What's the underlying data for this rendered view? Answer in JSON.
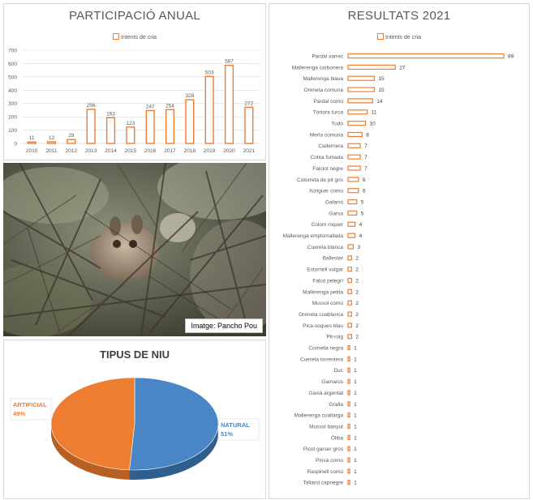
{
  "annual": {
    "title": "PARTICIPACIÓ ANUAL",
    "legend": "Intents de cria"
  },
  "results": {
    "title": "RESULTATS 2021",
    "legend": "Intents de cria"
  },
  "photo": {
    "credit": "Imatge: Pancho Pou"
  },
  "nest": {
    "title": "TIPUS DE NIU"
  },
  "colors": {
    "orange": "#ed7d31",
    "blue": "#4a86c5",
    "gridline": "#d9d9d9",
    "text": "#595959"
  },
  "chart_data": [
    {
      "type": "bar",
      "title": "PARTICIPACIÓ ANUAL",
      "categories": [
        "2010",
        "2011",
        "2012",
        "2013",
        "2014",
        "2015",
        "2016",
        "2017",
        "2018",
        "2019",
        "2020",
        "2021"
      ],
      "series": [
        {
          "name": "Intents de cria",
          "values": [
            11,
            12,
            29,
            256,
            193,
            123,
            247,
            254,
            328,
            503,
            587,
            272
          ]
        }
      ],
      "yticks": [
        0,
        100,
        200,
        300,
        400,
        500,
        600,
        700
      ],
      "ylim": [
        0,
        700
      ],
      "legend": "top",
      "data_labels": true
    },
    {
      "type": "bar",
      "orientation": "horizontal",
      "title": "RESULTATS 2021",
      "categories": [
        "Pardal xarrec",
        "Mallerenga carbonera",
        "Mallerenga blava",
        "Oreneta comuna",
        "Pardal comú",
        "Tórtora turca",
        "Tudó",
        "Merla comuna",
        "Cadernera",
        "Cotxa fumada",
        "Falciot negre",
        "Cotorreta de pit gris",
        "Xoriguer comú",
        "Gafarró",
        "Garsa",
        "Colom roquer",
        "Mallerenga emplomallada",
        "Cuereta blanca",
        "Ballester",
        "Estornell vulgar",
        "Falcó pelegrí",
        "Mallerenga petita",
        "Mussol comú",
        "Oreneta cuablanca",
        "Pica-soques blau",
        "Pit-roig",
        "Cornella negra",
        "Cuereta torrentera",
        "Duc",
        "Gamarús",
        "Gavià argentat",
        "Gralla",
        "Mallerenga cuallarga",
        "Mussol banyut",
        "Òliba",
        "Picot garser gros",
        "Pinsà comú",
        "Raspinell comú",
        "Tallarol capnegre"
      ],
      "series": [
        {
          "name": "Intents de cria",
          "values": [
            89,
            27,
            15,
            15,
            14,
            11,
            10,
            8,
            7,
            7,
            7,
            6,
            6,
            5,
            5,
            4,
            4,
            3,
            2,
            2,
            2,
            2,
            2,
            2,
            2,
            2,
            1,
            1,
            1,
            1,
            1,
            1,
            1,
            1,
            1,
            1,
            1,
            1,
            1
          ]
        }
      ],
      "legend": "top",
      "data_labels": true
    },
    {
      "type": "pie",
      "title": "TIPUS DE NIU",
      "labels": [
        "ARTIFICIAL",
        "NATURAL"
      ],
      "values": [
        49,
        51
      ],
      "value_labels": [
        "49%",
        "51%"
      ],
      "style": "3d"
    }
  ]
}
